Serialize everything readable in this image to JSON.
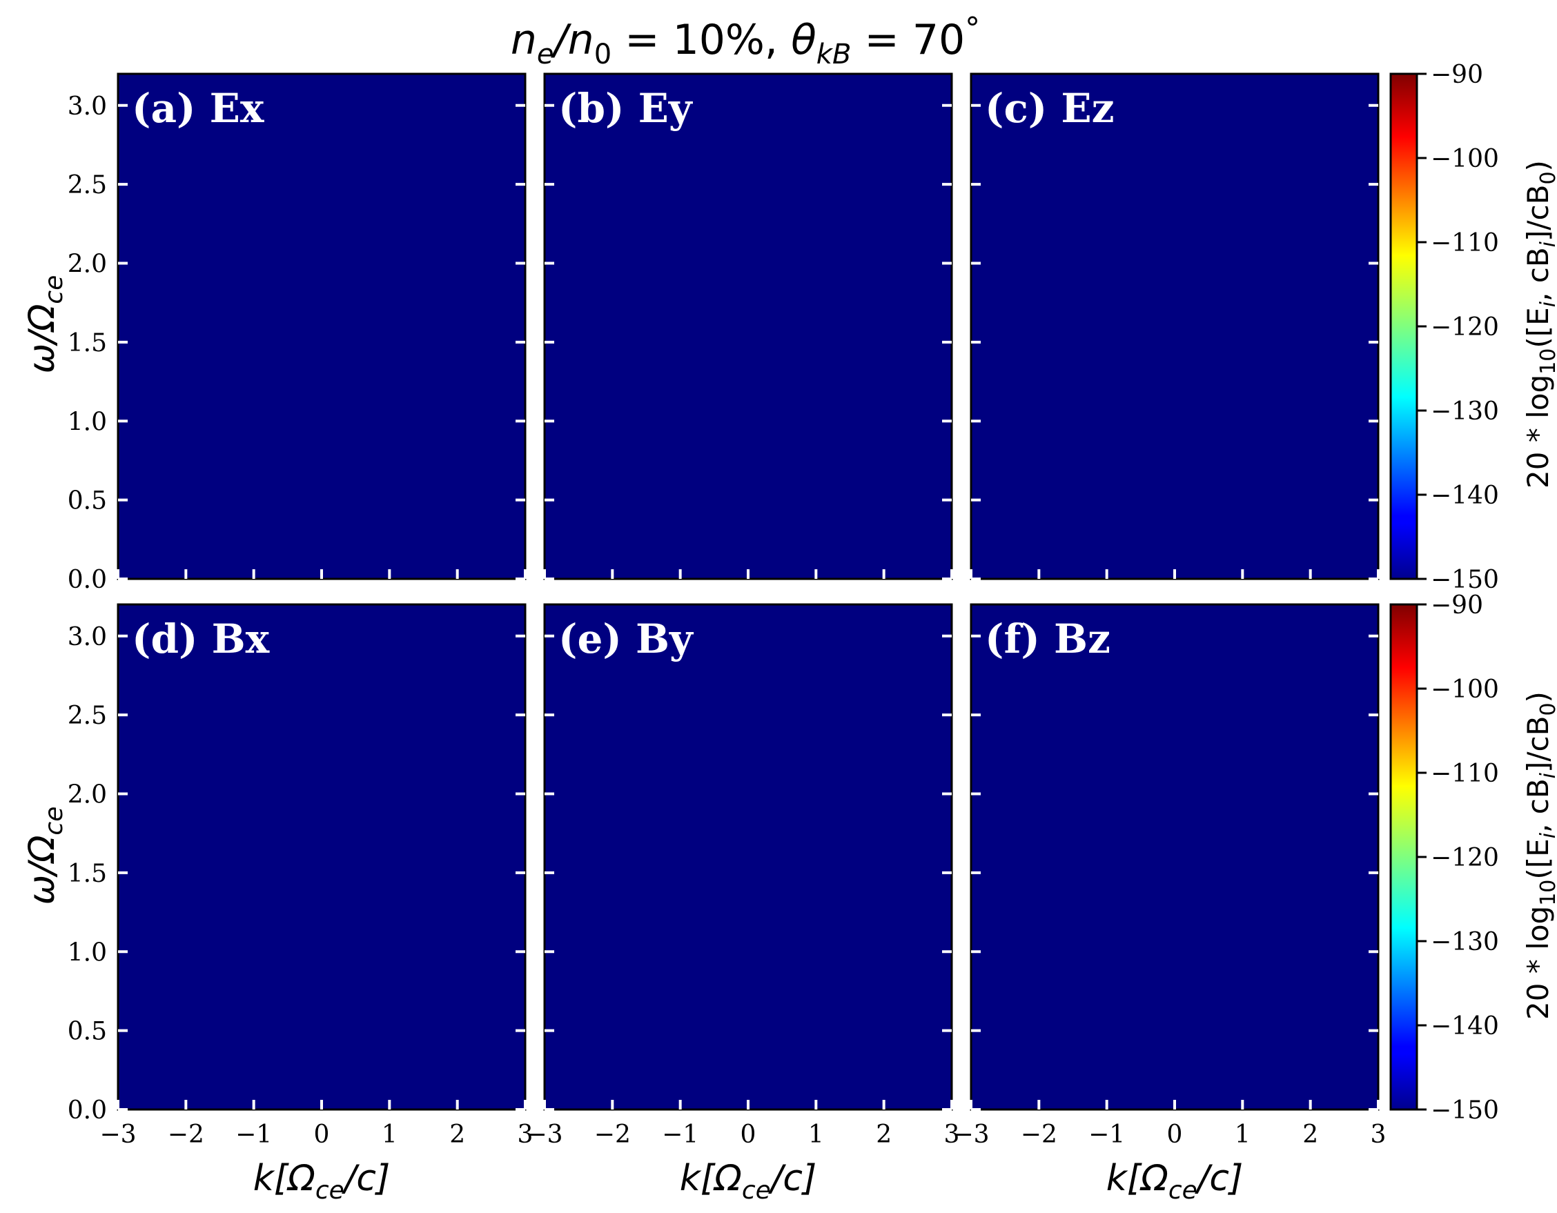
{
  "figure_title": {
    "lhs": "n",
    "lhs_sub": "e",
    "slash": "/",
    "rhs": "n",
    "rhs_sub": "0",
    "eq1": " = 10%,  ",
    "theta": "θ",
    "theta_sub": "kB",
    "eq2": " = 70",
    "deg": "°"
  },
  "ylabel": {
    "main": "ω/Ω",
    "sub": "ce"
  },
  "xlabel": {
    "pre": "k[Ω",
    "sub": "ce",
    "post": "/c]"
  },
  "colorbar_label": {
    "pre": "20 * log",
    "sub10": "10",
    "mid": "([E",
    "sub_i1": "i",
    "mid2": ", cB",
    "sub_i2": "i",
    "mid3": "]/cB",
    "sub0": "0",
    "post": ")"
  },
  "colors": {
    "panel_fill": "#00008c",
    "panel_text": "#ffffff",
    "tick_inside": "#ffffff",
    "axis": "#000000",
    "colormap": "jet"
  },
  "chart_data": {
    "type": "heatmap",
    "layout": "2x3 grid of panels sharing axes, one colorbar per row",
    "x_range": [
      -3,
      3
    ],
    "y_range": [
      0,
      3.2
    ],
    "x_ticks": [
      -3,
      -2,
      -1,
      0,
      1,
      2,
      3
    ],
    "x_tick_labels": [
      "−3",
      "−2",
      "−1",
      "0",
      "1",
      "2",
      "3"
    ],
    "y_ticks": [
      0.0,
      0.5,
      1.0,
      1.5,
      2.0,
      2.5,
      3.0
    ],
    "y_tick_labels": [
      "0.0",
      "0.5",
      "1.0",
      "1.5",
      "2.0",
      "2.5",
      "3.0"
    ],
    "colorbar": {
      "range": [
        -150,
        -90
      ],
      "ticks": [
        -90,
        -100,
        -110,
        -120,
        -130,
        -140,
        -150
      ],
      "tick_labels": [
        "−90",
        "−100",
        "−110",
        "−120",
        "−130",
        "−140",
        "−150"
      ],
      "colormap": "jet"
    },
    "panels": [
      {
        "label": "(a) Ex",
        "field": "Ex",
        "row": 0,
        "value": -150
      },
      {
        "label": "(b) Ey",
        "field": "Ey",
        "row": 0,
        "value": -150
      },
      {
        "label": "(c) Ez",
        "field": "Ez",
        "row": 0,
        "value": -150
      },
      {
        "label": "(d) Bx",
        "field": "Bx",
        "row": 1,
        "value": -150
      },
      {
        "label": "(e) By",
        "field": "By",
        "row": 1,
        "value": -150
      },
      {
        "label": "(f) Bz",
        "field": "Bz",
        "row": 1,
        "value": -150
      }
    ]
  }
}
